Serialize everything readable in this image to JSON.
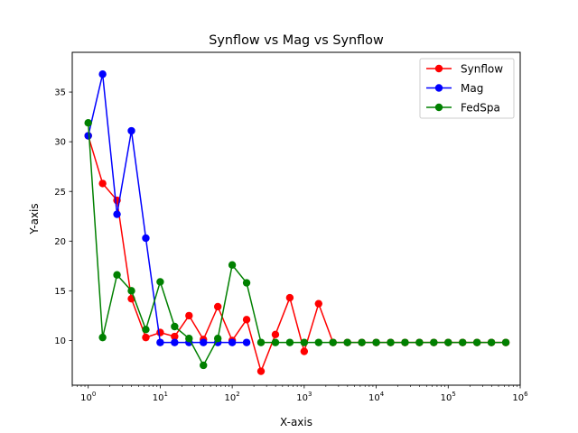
{
  "chart_data": {
    "type": "line",
    "title": "Synflow vs Mag vs Synflow",
    "xlabel": "X-axis",
    "ylabel": "Y-axis",
    "xscale": "log",
    "xlim": [
      0.6,
      1000000
    ],
    "ylim": [
      5.5,
      39
    ],
    "grid": false,
    "legend": "top-right",
    "x_ticks": [
      1,
      10,
      100,
      1000,
      10000,
      100000,
      1000000
    ],
    "x_tick_labels": [
      {
        "base": "10",
        "exp": "0"
      },
      {
        "base": "10",
        "exp": "1"
      },
      {
        "base": "10",
        "exp": "2"
      },
      {
        "base": "10",
        "exp": "3"
      },
      {
        "base": "10",
        "exp": "4"
      },
      {
        "base": "10",
        "exp": "5"
      },
      {
        "base": "10",
        "exp": "6"
      }
    ],
    "y_ticks": [
      10,
      15,
      20,
      25,
      30,
      35
    ],
    "y_tick_labels": [
      "10",
      "15",
      "20",
      "25",
      "30",
      "35"
    ],
    "x": [
      1,
      1.585,
      2.512,
      3.981,
      6.31,
      10,
      15.85,
      25.12,
      39.81,
      63.1,
      100,
      158.5,
      251.2,
      398.1,
      631,
      1000,
      1585,
      2512,
      3981,
      6310,
      10000,
      15850,
      25120,
      39810,
      63100,
      100000,
      158500,
      251200,
      398100,
      631000
    ],
    "series": [
      {
        "name": "Synflow",
        "color": "#ff0000",
        "values": [
          30.6,
          25.8,
          24.1,
          14.2,
          10.3,
          10.8,
          10.4,
          12.5,
          10.1,
          13.4,
          10.0,
          12.1,
          6.9,
          10.6,
          14.3,
          8.9,
          13.7,
          9.8,
          9.8,
          9.8,
          9.8,
          9.8,
          9.8,
          9.8,
          9.8,
          9.8,
          9.8,
          9.8,
          9.8,
          9.8
        ]
      },
      {
        "name": "Mag",
        "color": "#0000ff",
        "values": [
          30.6,
          36.8,
          22.7,
          31.1,
          20.3,
          9.8,
          9.8,
          9.8,
          9.8,
          9.8,
          9.8,
          9.8,
          null,
          null,
          null,
          null,
          null,
          null,
          null,
          null,
          null,
          null,
          null,
          null,
          null,
          null,
          null,
          null,
          null,
          null
        ]
      },
      {
        "name": "FedSpa",
        "color": "#008000",
        "values": [
          31.9,
          10.3,
          16.6,
          15.0,
          11.1,
          15.9,
          11.4,
          10.2,
          7.5,
          10.2,
          17.6,
          15.8,
          9.8,
          9.8,
          9.8,
          9.8,
          9.8,
          9.8,
          9.8,
          9.8,
          9.8,
          9.8,
          9.8,
          9.8,
          9.8,
          9.8,
          9.8,
          9.8,
          9.8,
          9.8
        ]
      }
    ]
  }
}
